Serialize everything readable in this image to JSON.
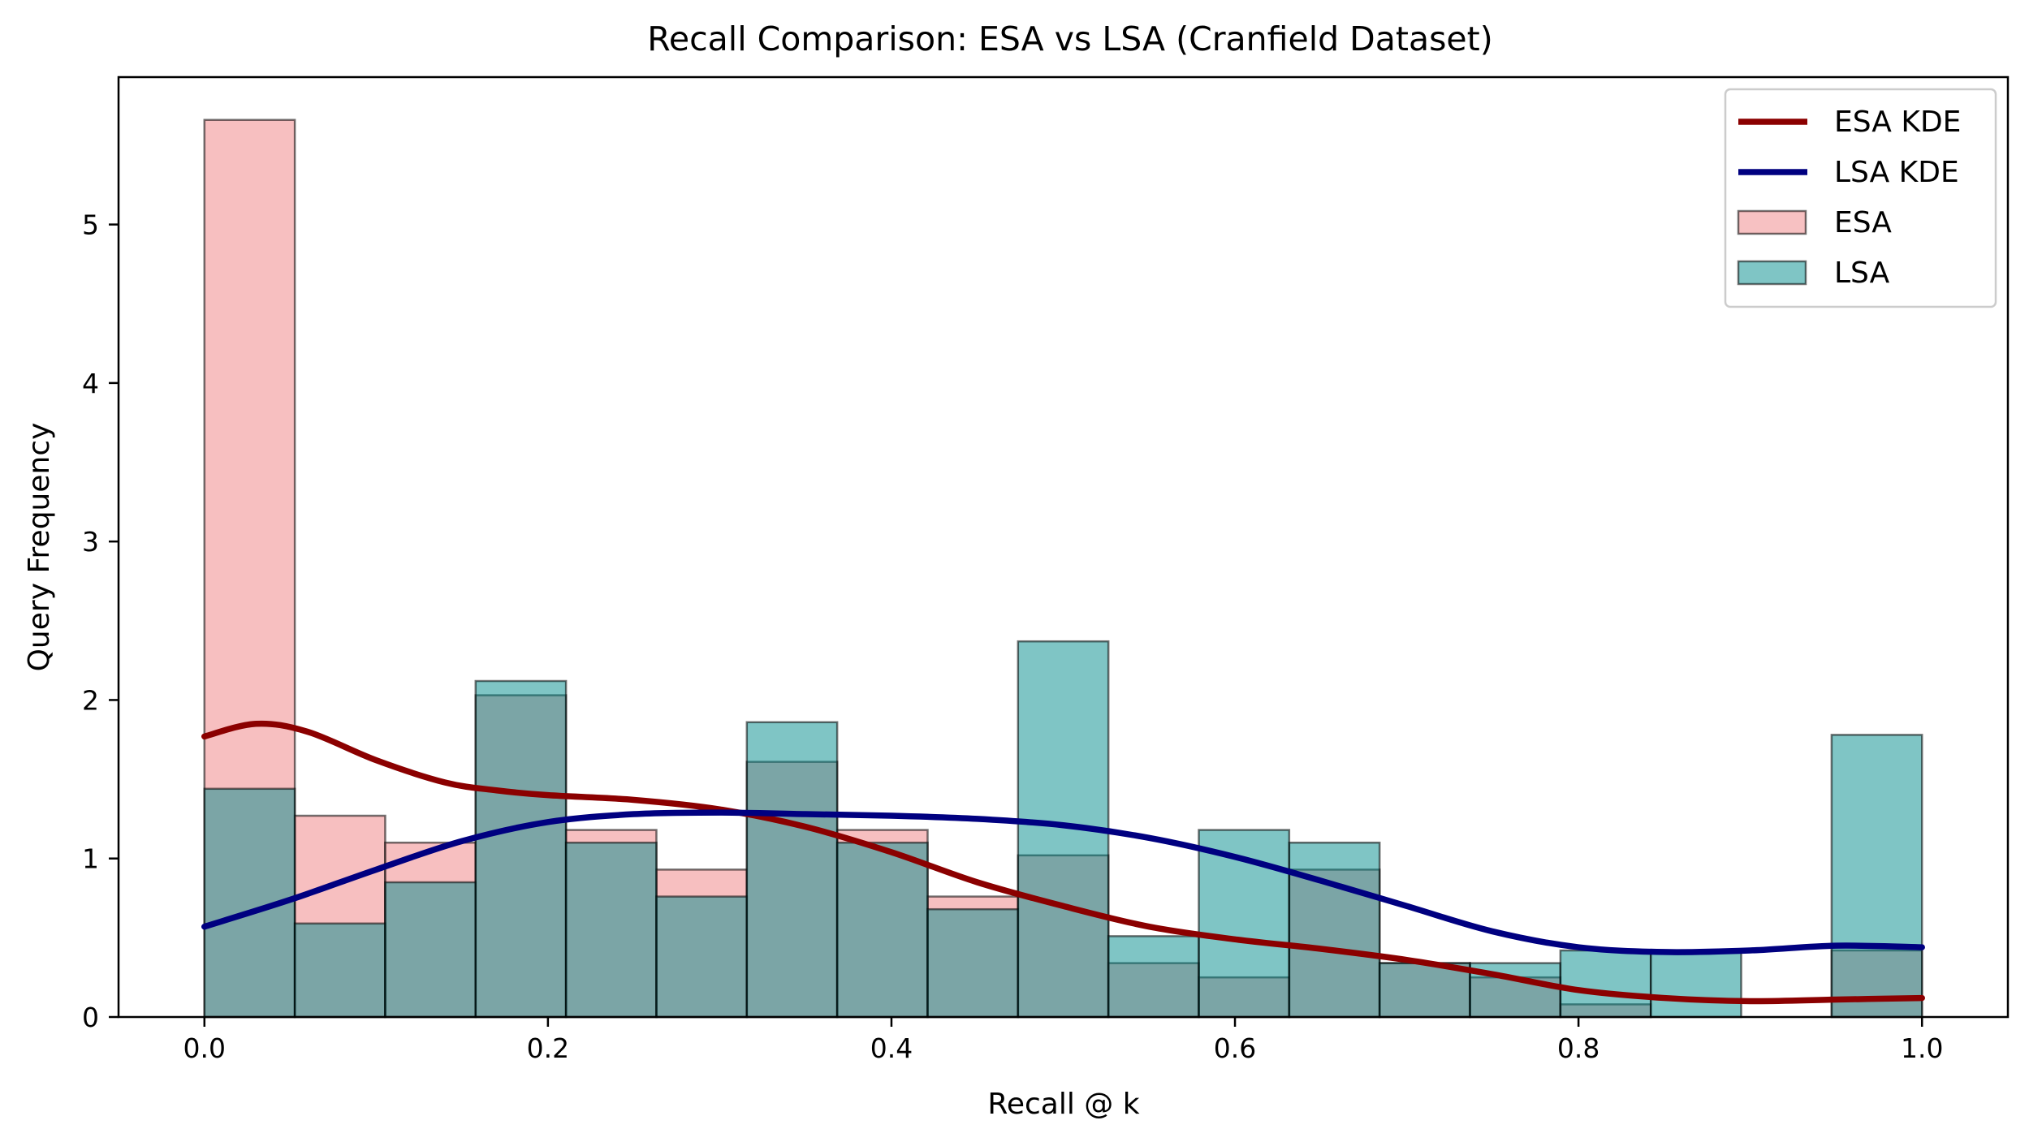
{
  "chart_data": {
    "type": "histogram",
    "title": "Recall Comparison: ESA vs LSA (Cranfield Dataset)",
    "xlabel": "Recall @ k",
    "ylabel": "Query Frequency",
    "xlim": [
      -0.05,
      1.05
    ],
    "ylim": [
      0,
      5.93
    ],
    "xticks": [
      0.0,
      0.2,
      0.4,
      0.6,
      0.8,
      1.0
    ],
    "xtick_labels": [
      "0.0",
      "0.2",
      "0.4",
      "0.6",
      "0.8",
      "1.0"
    ],
    "yticks": [
      0,
      1,
      2,
      3,
      4,
      5
    ],
    "ytick_labels": [
      "0",
      "1",
      "2",
      "3",
      "4",
      "5"
    ],
    "grid": false,
    "legend_position": "top-right",
    "bins": {
      "start": 0.0,
      "end": 1.0,
      "count": 19
    },
    "series": [
      {
        "name": "ESA",
        "kind": "histogram",
        "color": "#f4a6a8",
        "values": [
          5.66,
          1.27,
          1.1,
          2.03,
          1.18,
          0.93,
          1.61,
          1.18,
          0.76,
          1.02,
          0.34,
          0.25,
          0.93,
          0.34,
          0.25,
          0.08,
          0.0,
          0.0,
          0.42
        ]
      },
      {
        "name": "LSA",
        "kind": "histogram",
        "color": "#008b8b",
        "values": [
          1.44,
          0.59,
          0.85,
          2.12,
          1.1,
          0.76,
          1.86,
          1.1,
          0.68,
          2.37,
          0.51,
          1.18,
          1.1,
          0.34,
          0.34,
          0.42,
          0.42,
          0.0,
          1.78
        ]
      },
      {
        "name": "ESA KDE",
        "kind": "line",
        "color": "#8b0000",
        "x": [
          0.0,
          0.03,
          0.06,
          0.1,
          0.14,
          0.17,
          0.2,
          0.25,
          0.3,
          0.35,
          0.4,
          0.45,
          0.5,
          0.55,
          0.6,
          0.65,
          0.7,
          0.75,
          0.8,
          0.85,
          0.9,
          0.95,
          1.0
        ],
        "y": [
          1.77,
          1.85,
          1.8,
          1.62,
          1.48,
          1.43,
          1.4,
          1.37,
          1.31,
          1.2,
          1.04,
          0.85,
          0.7,
          0.57,
          0.49,
          0.43,
          0.36,
          0.27,
          0.17,
          0.12,
          0.1,
          0.11,
          0.12
        ]
      },
      {
        "name": "LSA KDE",
        "kind": "line",
        "color": "#000080",
        "x": [
          0.0,
          0.05,
          0.1,
          0.15,
          0.2,
          0.25,
          0.3,
          0.35,
          0.4,
          0.45,
          0.5,
          0.55,
          0.6,
          0.65,
          0.7,
          0.75,
          0.8,
          0.85,
          0.9,
          0.95,
          1.0
        ],
        "y": [
          0.57,
          0.74,
          0.93,
          1.11,
          1.23,
          1.28,
          1.29,
          1.28,
          1.27,
          1.25,
          1.21,
          1.13,
          1.01,
          0.86,
          0.7,
          0.54,
          0.44,
          0.41,
          0.42,
          0.45,
          0.44
        ]
      }
    ],
    "legend": [
      "ESA KDE",
      "LSA KDE",
      "ESA",
      "LSA"
    ]
  }
}
